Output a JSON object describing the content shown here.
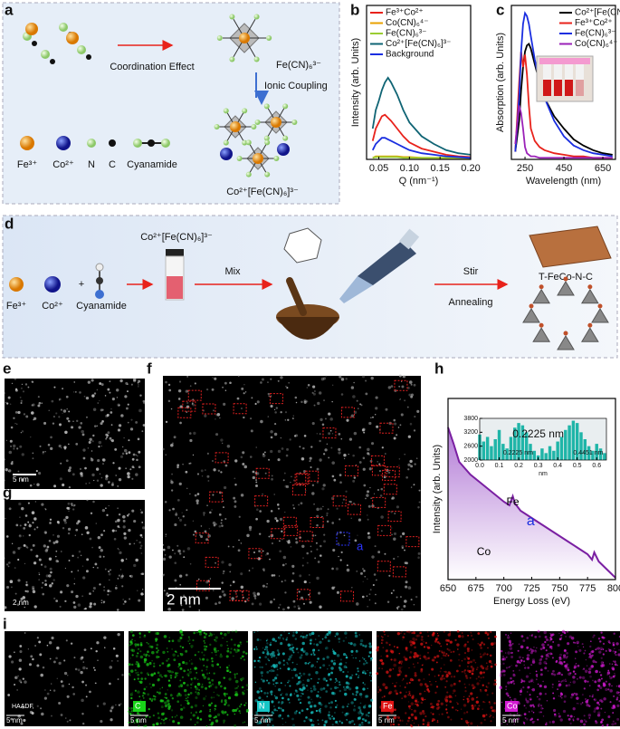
{
  "panel_labels": [
    "a",
    "b",
    "c",
    "d",
    "e",
    "f",
    "g",
    "h",
    "i"
  ],
  "panel_a": {
    "coordination": "Coordination Effect",
    "complex": "Fe(CN)₆³⁻",
    "coupling": "Ionic Coupling",
    "product": "Co²⁺[Fe(CN)₆]³⁻",
    "legend": [
      "Fe³⁺",
      "Co²⁺",
      "N",
      "C",
      "Cyanamide"
    ]
  },
  "panel_d": {
    "reagents": [
      "Fe³⁺",
      "Co²⁺",
      "+",
      "Cyanamide"
    ],
    "precursor": "Co²⁺[Fe(CN)₆]³⁻",
    "mix": "Mix",
    "stir": "Stir",
    "annealing": "Annealing",
    "product": "T-FeCo-N-C"
  },
  "panel_e": {
    "scale": "5 nm"
  },
  "panel_f": {
    "scale": "2 nm",
    "marker": "a"
  },
  "panel_g": {
    "scale": "2 nm"
  },
  "panel_i": {
    "maps": [
      {
        "label": "HAADF",
        "scale": "5 nm",
        "color": "#cfcfcf"
      },
      {
        "label": "C",
        "scale": "5 nm",
        "color": "#19d419"
      },
      {
        "label": "N",
        "scale": "5 nm",
        "color": "#17c6c6"
      },
      {
        "label": "Fe",
        "scale": "5 nm",
        "color": "#e01414"
      },
      {
        "label": "Co",
        "scale": "5 nm",
        "color": "#d21ad2"
      }
    ]
  },
  "chart_data": [
    {
      "type": "line",
      "x_label": "Q (nm⁻¹)",
      "y_label": "Intensity (arb. Units)",
      "xlim": [
        0.03,
        0.2
      ],
      "ylim": [
        0,
        100
      ],
      "xticks": [
        0.05,
        {
          "value": 0.1,
          "label": "0.10"
        },
        0.15,
        {
          "value": 0.2,
          "label": "0.20"
        }
      ],
      "legend": "upper left",
      "x": [
        0.04,
        0.045,
        0.05,
        0.055,
        0.06,
        0.065,
        0.07,
        0.08,
        0.09,
        0.1,
        0.12,
        0.14,
        0.16,
        0.18,
        0.2
      ],
      "series": [
        {
          "name": "Fe³⁺Co²⁺",
          "color": "#e8221b",
          "values": [
            12,
            20,
            24,
            28,
            29,
            27,
            25,
            20,
            15,
            11,
            7,
            5,
            3,
            2,
            1.5
          ]
        },
        {
          "name": "Co(CN)₆⁴⁻",
          "color": "#e8a200",
          "values": [
            1,
            2,
            2,
            2,
            2,
            2,
            2,
            2,
            1.5,
            1.5,
            1,
            1,
            1,
            1,
            1
          ]
        },
        {
          "name": "Fe(CN)₆³⁻",
          "color": "#9acd32",
          "values": [
            1,
            1.5,
            1.5,
            1.5,
            1.5,
            1.5,
            1.5,
            1.5,
            1,
            1,
            1,
            1,
            1,
            1,
            1
          ]
        },
        {
          "name": "Co²⁺[Fe(CN)₆]³⁻",
          "color": "#0f6474",
          "values": [
            20,
            32,
            38,
            45,
            50,
            53,
            50,
            42,
            32,
            24,
            15,
            10,
            6,
            4,
            3
          ]
        },
        {
          "name": "Background",
          "color": "#1a2ee0",
          "values": [
            6,
            10,
            12,
            14,
            14,
            13,
            12,
            10,
            8,
            6,
            4,
            3,
            2,
            1.5,
            1
          ]
        }
      ]
    },
    {
      "type": "line",
      "x_label": "Wavelength (nm)",
      "y_label": "Absorption (arb. Units)",
      "xlim": [
        180,
        715
      ],
      "ylim": [
        0,
        100
      ],
      "xticks": [
        250,
        450,
        650
      ],
      "legend": "upper right",
      "x": [
        200,
        220,
        230,
        240,
        250,
        260,
        270,
        280,
        300,
        325,
        350,
        400,
        450,
        500,
        550,
        600,
        650,
        700
      ],
      "series": [
        {
          "name": "Co²⁺[Fe(CN)₆]³⁻",
          "color": "#000000",
          "values": [
            5,
            25,
            45,
            60,
            70,
            74,
            75,
            72,
            62,
            50,
            40,
            28,
            20,
            13,
            9,
            6,
            4,
            3
          ]
        },
        {
          "name": "Fe³⁺Co²⁺",
          "color": "#e8221b",
          "values": [
            5,
            50,
            70,
            60,
            68,
            55,
            35,
            20,
            12,
            8,
            6,
            4,
            3,
            2,
            2,
            1,
            1,
            1
          ]
        },
        {
          "name": "Fe(CN)₆³⁻",
          "color": "#1a2ee0",
          "values": [
            5,
            40,
            70,
            88,
            95,
            93,
            88,
            80,
            65,
            50,
            40,
            25,
            15,
            9,
            6,
            4,
            3,
            2
          ]
        },
        {
          "name": "Co(CN)₆⁴⁻",
          "color": "#9b22b8",
          "values": [
            10,
            35,
            30,
            20,
            8,
            4,
            3,
            2,
            2,
            1,
            1,
            1,
            1,
            1,
            1,
            1,
            1,
            1
          ]
        }
      ]
    },
    {
      "type": "area",
      "x_label": "Energy Loss (eV)",
      "y_label": "Intensity (arb. Units)",
      "xlim": [
        650,
        800
      ],
      "ylim": [
        0,
        100
      ],
      "xticks": [
        650,
        675,
        700,
        725,
        750,
        775,
        800
      ],
      "color": "#7a1fa2",
      "annotations": [
        "Fe",
        "a",
        "Co"
      ],
      "x": [
        650,
        655,
        660,
        670,
        680,
        690,
        700,
        705,
        708,
        710,
        715,
        725,
        735,
        745,
        755,
        765,
        775,
        779,
        781,
        785,
        790,
        795,
        800
      ],
      "values": [
        84,
        75,
        65,
        58,
        53,
        48,
        43,
        41,
        46,
        42,
        38,
        34,
        30,
        26,
        22,
        18,
        14,
        11,
        15,
        10,
        7,
        4,
        1
      ]
    },
    {
      "type": "bar",
      "x_label": "nm",
      "xlim": [
        0,
        0.65
      ],
      "ylim": [
        2000,
        3800
      ],
      "color": "#1fb5a8",
      "xticks": [
        {
          "value": 0,
          "label": "0.0"
        },
        0.1,
        0.2,
        0.3,
        0.4,
        0.5,
        0.6
      ],
      "yticks": [
        2000,
        2600,
        3200,
        3800
      ],
      "annotations": [
        "0.2225 nm",
        "0.2225 nm",
        "0.4451 nm"
      ],
      "x": [
        0,
        0.02,
        0.04,
        0.06,
        0.08,
        0.1,
        0.12,
        0.14,
        0.16,
        0.18,
        0.2,
        0.22,
        0.24,
        0.26,
        0.28,
        0.3,
        0.32,
        0.34,
        0.36,
        0.38,
        0.4,
        0.42,
        0.44,
        0.46,
        0.48,
        0.5,
        0.52,
        0.54,
        0.56,
        0.58,
        0.6,
        0.62,
        0.64
      ],
      "values": [
        3100,
        2800,
        3000,
        2600,
        2900,
        3300,
        2700,
        2500,
        3000,
        3400,
        3600,
        3500,
        3200,
        2700,
        2400,
        2200,
        2500,
        2300,
        2600,
        2400,
        2800,
        3000,
        3300,
        3500,
        3700,
        3600,
        3200,
        2900,
        2600,
        2400,
        2700,
        2500,
        2300
      ]
    }
  ]
}
